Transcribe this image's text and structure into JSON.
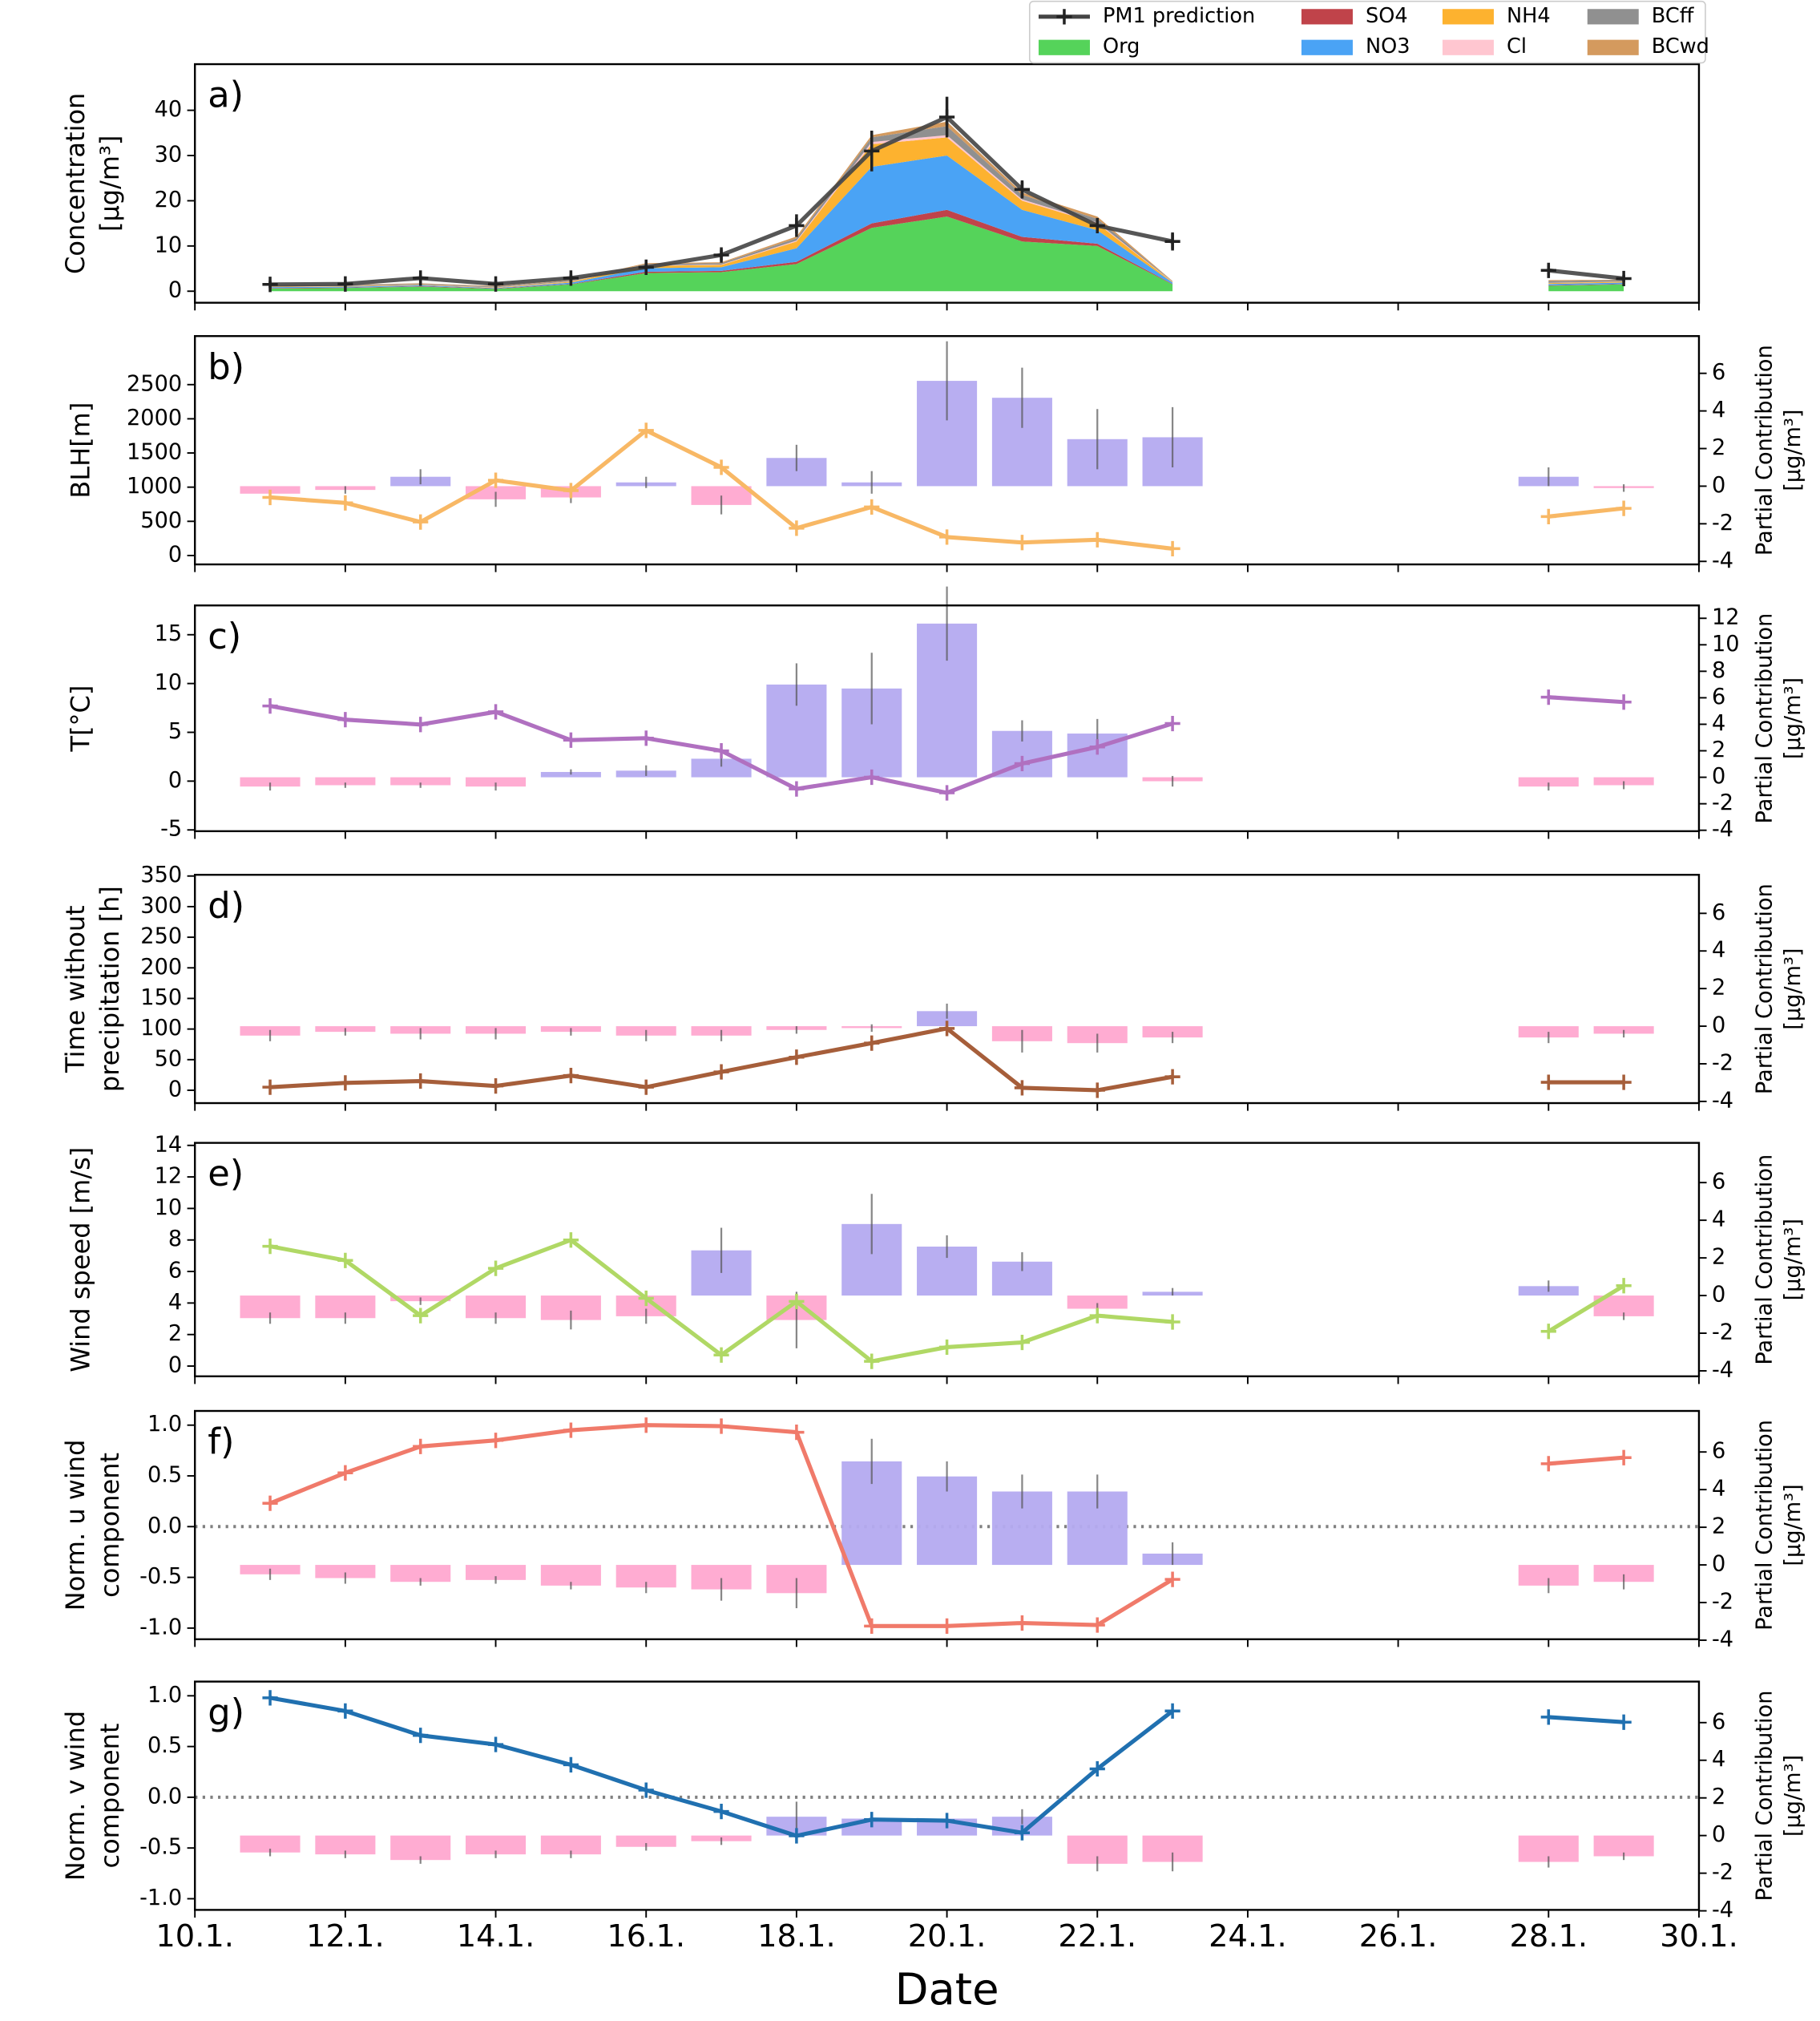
{
  "chart_data": [
    {
      "type": "area",
      "label": "a)",
      "ylabel": [
        "Concentration",
        "[μg/m³]"
      ],
      "ylabel_color": "#000000",
      "x": [
        11,
        12,
        13,
        14,
        15,
        16,
        17,
        18,
        19,
        20,
        21,
        22,
        23,
        24,
        25,
        26,
        27,
        28,
        29
      ],
      "xlim": [
        10,
        30
      ],
      "ylim": [
        -2.55,
        50.2
      ],
      "yticks": [
        0,
        10,
        20,
        30,
        40
      ],
      "legend": "above right",
      "prediction": {
        "name": "PM1 prediction",
        "color": "#444444",
        "values": [
          1.5,
          1.6,
          2.9,
          1.6,
          2.9,
          5.3,
          8,
          14.5,
          31,
          38.5,
          22.5,
          14.5,
          11,
          null,
          null,
          null,
          null,
          4.6,
          2.8
        ],
        "errors": [
          0.8,
          0.8,
          0.8,
          0.8,
          0.8,
          1,
          1.2,
          2.5,
          4.5,
          4.5,
          2,
          1.5,
          2,
          null,
          null,
          null,
          null,
          1,
          0.8
        ]
      },
      "series": [
        {
          "name": "Org",
          "color": "#55d35a",
          "values": [
            0.6,
            0.7,
            1,
            0.5,
            1.5,
            4,
            4.2,
            6,
            14,
            16.5,
            11,
            10,
            1.5,
            null,
            null,
            null,
            null,
            1.2,
            1.5
          ]
        },
        {
          "name": "SO4",
          "color": "#c0434a",
          "values": [
            0.1,
            0.1,
            0.1,
            0.1,
            0.1,
            0.3,
            0.3,
            0.5,
            1,
            1.5,
            1,
            0.5,
            0.1,
            null,
            null,
            null,
            null,
            0.1,
            0.1
          ]
        },
        {
          "name": "NO3",
          "color": "#4aa3f5",
          "values": [
            0.2,
            0.2,
            0.2,
            0.1,
            0.3,
            0.8,
            0.8,
            3,
            12.5,
            12,
            6,
            3,
            0.3,
            null,
            null,
            null,
            null,
            0.3,
            0.3
          ]
        },
        {
          "name": "NH4",
          "color": "#fdb22f",
          "values": [
            0.1,
            0.1,
            0.1,
            0.1,
            0.2,
            0.5,
            0.5,
            1.5,
            5,
            4,
            2,
            1.5,
            0.1,
            null,
            null,
            null,
            null,
            0.2,
            0.2
          ]
        },
        {
          "name": "Cl",
          "color": "#ffc6d0",
          "values": [
            0.05,
            0.05,
            0.05,
            0.05,
            0.05,
            0.1,
            0.1,
            0.2,
            0.5,
            0.5,
            0.3,
            0.2,
            0.05,
            null,
            null,
            null,
            null,
            0.05,
            0.05
          ]
        },
        {
          "name": "BCff",
          "color": "#909090",
          "values": [
            0.2,
            0.2,
            0.2,
            0.2,
            0.2,
            0.3,
            0.3,
            0.5,
            1,
            2,
            1,
            0.8,
            0.1,
            null,
            null,
            null,
            null,
            0.4,
            0.3
          ]
        },
        {
          "name": "BCwd",
          "color": "#d49a5e",
          "values": [
            0.1,
            0.1,
            0.1,
            0.1,
            0.1,
            0.2,
            0.2,
            0.4,
            0.5,
            1,
            0.5,
            0.5,
            0.1,
            null,
            null,
            null,
            null,
            0.2,
            0.1
          ]
        }
      ]
    },
    {
      "type": "combo",
      "label": "b)",
      "ylabel": [
        "BLH[m]"
      ],
      "ylabel_color": "#f8b865",
      "x": [
        11,
        12,
        13,
        14,
        15,
        16,
        17,
        18,
        19,
        20,
        21,
        22,
        23,
        24,
        25,
        26,
        27,
        28,
        29
      ],
      "xlim": [
        10,
        30
      ],
      "ylim": [
        -130,
        3210
      ],
      "yticks": [
        0,
        500,
        1000,
        1500,
        2000,
        2500
      ],
      "y2label": [
        "Partial Contribution",
        "[μg/m³]"
      ],
      "y2lim": [
        -4.16,
        7.98
      ],
      "y2ticks": [
        -4,
        -2,
        0,
        2,
        4,
        6
      ],
      "line": {
        "color": "#f8b865",
        "values": [
          850,
          770,
          490,
          1100,
          950,
          1830,
          1290,
          400,
          710,
          270,
          190,
          230,
          100,
          null,
          null,
          null,
          null,
          570,
          690
        ]
      },
      "bars": {
        "axis": "y2",
        "pos_color": "#b4aaf0",
        "neg_color": "#ffa8d0",
        "values": [
          -0.4,
          -0.2,
          0.5,
          -0.7,
          -0.6,
          0.2,
          -1,
          1.5,
          0.2,
          5.6,
          4.7,
          2.5,
          2.6,
          null,
          null,
          null,
          null,
          0.5,
          -0.1
        ],
        "errors": [
          0.2,
          0.2,
          0.4,
          0.4,
          0.3,
          0.3,
          0.5,
          0.7,
          0.6,
          2.1,
          1.6,
          1.6,
          1.6,
          null,
          null,
          null,
          null,
          0.5,
          0.2
        ]
      }
    },
    {
      "type": "combo",
      "label": "c)",
      "ylabel": [
        "T[°C]"
      ],
      "ylabel_color": "#b070c0",
      "x": [
        11,
        12,
        13,
        14,
        15,
        16,
        17,
        18,
        19,
        20,
        21,
        22,
        23,
        24,
        25,
        26,
        27,
        28,
        29
      ],
      "xlim": [
        10,
        30
      ],
      "ylim": [
        -5.13,
        18.0
      ],
      "yticks": [
        -5,
        0,
        5,
        10,
        15
      ],
      "y2label": [
        "Partial Contribution",
        "[μg/m³]"
      ],
      "y2lim": [
        -4.07,
        12.97
      ],
      "y2ticks": [
        -4,
        -2,
        0,
        2,
        4,
        6,
        8,
        10,
        12
      ],
      "line": {
        "color": "#b070c0",
        "values": [
          7.7,
          6.3,
          5.8,
          7.1,
          4.2,
          4.4,
          3.1,
          -0.8,
          0.4,
          -1.2,
          1.8,
          3.5,
          5.9,
          null,
          null,
          null,
          null,
          8.6,
          8.1
        ]
      },
      "bars": {
        "axis": "y2",
        "pos_color": "#b4aaf0",
        "neg_color": "#ffa8d0",
        "values": [
          -0.7,
          -0.6,
          -0.6,
          -0.7,
          0.4,
          0.5,
          1.4,
          7,
          6.7,
          11.6,
          3.5,
          3.3,
          -0.3,
          null,
          null,
          null,
          null,
          -0.7,
          -0.6
        ],
        "errors": [
          0.3,
          0.2,
          0.2,
          0.3,
          0.2,
          0.4,
          0.6,
          1.6,
          2.7,
          2.8,
          0.8,
          1.1,
          0.4,
          null,
          null,
          null,
          null,
          0.3,
          0.3
        ]
      }
    },
    {
      "type": "combo",
      "label": "d)",
      "ylabel": [
        "Time without",
        "precipitation [h]"
      ],
      "ylabel_color": "#a65e3a",
      "x": [
        11,
        12,
        13,
        14,
        15,
        16,
        17,
        18,
        19,
        20,
        21,
        22,
        23,
        24,
        25,
        26,
        27,
        28,
        29
      ],
      "xlim": [
        10,
        30
      ],
      "ylim": [
        -21,
        352
      ],
      "yticks": [
        0,
        50,
        100,
        150,
        200,
        250,
        300,
        350
      ],
      "y2label": [
        "Partial Contribution",
        "[μg/m³]"
      ],
      "y2lim": [
        -4.09,
        8.05
      ],
      "y2ticks": [
        -4,
        -2,
        0,
        2,
        4,
        6
      ],
      "line": {
        "color": "#a65e3a",
        "values": [
          5,
          12,
          15,
          7,
          24,
          5,
          30,
          54,
          77,
          101,
          4,
          0,
          22,
          null,
          null,
          null,
          null,
          13,
          13
        ]
      },
      "bars": {
        "axis": "y2",
        "pos_color": "#b4aaf0",
        "neg_color": "#ffa8d0",
        "values": [
          -0.5,
          -0.3,
          -0.4,
          -0.4,
          -0.3,
          -0.5,
          -0.5,
          -0.2,
          -0.1,
          0.8,
          -0.8,
          -0.9,
          -0.6,
          null,
          null,
          null,
          null,
          -0.6,
          -0.4
        ],
        "errors": [
          0.3,
          0.2,
          0.3,
          0.3,
          0.2,
          0.3,
          0.3,
          0.2,
          0.2,
          0.4,
          0.6,
          0.5,
          0.3,
          null,
          null,
          null,
          null,
          0.3,
          0.2
        ]
      }
    },
    {
      "type": "combo",
      "label": "e)",
      "ylabel": [
        "Wind speed [m/s]"
      ],
      "ylabel_color": "#b0d865",
      "x": [
        11,
        12,
        13,
        14,
        15,
        16,
        17,
        18,
        19,
        20,
        21,
        22,
        23,
        24,
        25,
        26,
        27,
        28,
        29
      ],
      "xlim": [
        10,
        30
      ],
      "ylim": [
        -0.65,
        14.16
      ],
      "yticks": [
        0,
        2,
        4,
        6,
        8,
        10,
        12,
        14
      ],
      "y2label": [
        "Partial Contribution",
        "[μg/m³]"
      ],
      "y2lim": [
        -4.29,
        8.11
      ],
      "y2ticks": [
        -4,
        -2,
        0,
        2,
        4,
        6
      ],
      "line": {
        "color": "#b0d865",
        "values": [
          7.6,
          6.7,
          3.2,
          6.2,
          8,
          4.3,
          0.7,
          4.1,
          0.3,
          1.2,
          1.5,
          3.2,
          2.8,
          null,
          null,
          null,
          null,
          2.2,
          5.1
        ]
      },
      "bars": {
        "axis": "y2",
        "pos_color": "#b4aaf0",
        "neg_color": "#ffa8d0",
        "values": [
          -1.2,
          -1.2,
          -0.3,
          -1.2,
          -1.3,
          -1.1,
          2.4,
          -1.3,
          3.8,
          2.6,
          1.8,
          -0.7,
          0.2,
          null,
          null,
          null,
          null,
          0.5,
          -1.1
        ],
        "errors": [
          0.3,
          0.3,
          0.2,
          0.3,
          0.5,
          0.4,
          1.2,
          1.5,
          1.6,
          0.6,
          0.5,
          0.3,
          0.2,
          null,
          null,
          null,
          null,
          0.3,
          0.2
        ]
      }
    },
    {
      "type": "combo",
      "label": "f)",
      "ylabel": [
        "Norm. u wind",
        "component"
      ],
      "ylabel_color": "#f07a6a",
      "x": [
        11,
        12,
        13,
        14,
        15,
        16,
        17,
        18,
        19,
        20,
        21,
        22,
        23,
        24,
        25,
        26,
        27,
        28,
        29
      ],
      "xlim": [
        10,
        30
      ],
      "ylim": [
        -1.11,
        1.14
      ],
      "yticks": [
        {
          "value": -1,
          "label": "-1.0"
        },
        -0.5,
        {
          "value": 0,
          "label": "0.0"
        },
        0.5,
        {
          "value": 1,
          "label": "1.0"
        }
      ],
      "hline": 0,
      "y2label": [
        "Partial Contribution",
        "[μg/m³]"
      ],
      "y2lim": [
        -3.95,
        8.18
      ],
      "y2ticks": [
        -4,
        -2,
        0,
        2,
        4,
        6
      ],
      "line": {
        "color": "#f07a6a",
        "values": [
          0.23,
          0.53,
          0.79,
          0.85,
          0.95,
          1,
          0.99,
          0.93,
          -0.98,
          -0.98,
          -0.95,
          -0.97,
          -0.52,
          null,
          null,
          null,
          null,
          0.62,
          0.68
        ]
      },
      "bars": {
        "axis": "y2",
        "pos_color": "#b4aaf0",
        "neg_color": "#ffa8d0",
        "values": [
          -0.5,
          -0.7,
          -0.9,
          -0.8,
          -1.1,
          -1.2,
          -1.3,
          -1.5,
          5.5,
          4.7,
          3.9,
          3.9,
          0.6,
          null,
          null,
          null,
          null,
          -1.1,
          -0.9
        ],
        "errors": [
          0.3,
          0.3,
          0.2,
          0.2,
          0.2,
          0.3,
          0.6,
          0.8,
          1.2,
          0.8,
          0.9,
          0.9,
          0.6,
          null,
          null,
          null,
          null,
          0.4,
          0.4
        ]
      }
    },
    {
      "type": "combo",
      "label": "g)",
      "ylabel": [
        "Norm. v wind",
        "component"
      ],
      "ylabel_color": "#2070b0",
      "x": [
        11,
        12,
        13,
        14,
        15,
        16,
        17,
        18,
        19,
        20,
        21,
        22,
        23,
        24,
        25,
        26,
        27,
        28,
        29
      ],
      "xlim": [
        10,
        30
      ],
      "xticks": [
        {
          "value": 10,
          "label": "10.1."
        },
        {
          "value": 12,
          "label": "12.1."
        },
        {
          "value": 14,
          "label": "14.1."
        },
        {
          "value": 16,
          "label": "16.1."
        },
        {
          "value": 18,
          "label": "18.1."
        },
        {
          "value": 20,
          "label": "20.1."
        },
        {
          "value": 22,
          "label": "22.1."
        },
        {
          "value": 24,
          "label": "24.1."
        },
        {
          "value": 26,
          "label": "26.1."
        },
        {
          "value": 28,
          "label": "28.1."
        },
        {
          "value": 30,
          "label": "30.1."
        }
      ],
      "xlabel": "Date",
      "ylim": [
        -1.11,
        1.14
      ],
      "yticks": [
        {
          "value": -1,
          "label": "-1.0"
        },
        -0.5,
        {
          "value": 0,
          "label": "0.0"
        },
        0.5,
        {
          "value": 1,
          "label": "1.0"
        }
      ],
      "hline": 0,
      "y2label": [
        "Partial Contribution",
        "[μg/m³]"
      ],
      "y2lim": [
        -3.95,
        8.18
      ],
      "y2ticks": [
        -4,
        -2,
        0,
        2,
        4,
        6
      ],
      "line": {
        "color": "#2070b0",
        "values": [
          0.98,
          0.85,
          0.61,
          0.52,
          0.32,
          0.07,
          -0.14,
          -0.38,
          -0.22,
          -0.23,
          -0.35,
          0.28,
          0.85,
          null,
          null,
          null,
          null,
          0.79,
          0.74
        ]
      },
      "bars": {
        "axis": "y2",
        "pos_color": "#b4aaf0",
        "neg_color": "#ffa8d0",
        "values": [
          -0.9,
          -1,
          -1.3,
          -1,
          -1,
          -0.6,
          -0.3,
          1,
          0.9,
          0.9,
          1,
          -1.5,
          -1.4,
          null,
          null,
          null,
          null,
          -1.4,
          -1.1
        ],
        "errors": [
          0.2,
          0.2,
          0.2,
          0.2,
          0.2,
          0.2,
          0.2,
          0.8,
          0.3,
          0.3,
          0.4,
          0.4,
          0.5,
          null,
          null,
          null,
          null,
          0.3,
          0.2
        ]
      }
    }
  ]
}
